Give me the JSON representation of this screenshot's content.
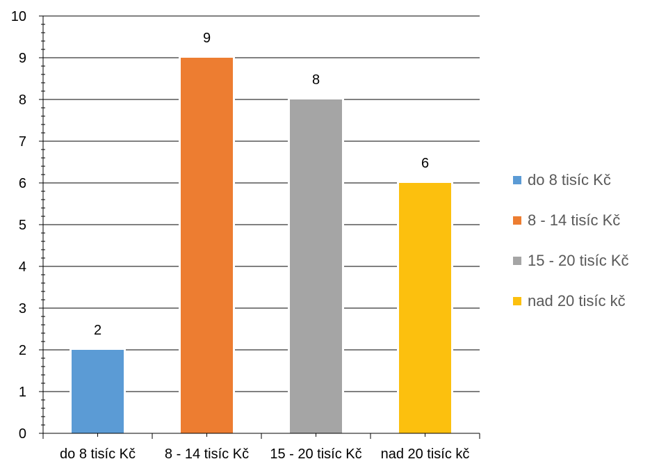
{
  "chart_data": {
    "type": "bar",
    "title": "",
    "xlabel": "",
    "ylabel": "",
    "ylim": [
      0,
      10
    ],
    "y_ticks": [
      "0",
      "1",
      "2",
      "3",
      "4",
      "5",
      "6",
      "7",
      "8",
      "9",
      "10"
    ],
    "grid": true,
    "legend_position": "right",
    "categories": [
      "do 8 tisíc Kč",
      "8 - 14 tisíc Kč",
      "15 - 20 tisíc Kč",
      "nad 20 tisíc kč"
    ],
    "values": [
      2,
      9,
      8,
      6
    ],
    "data_labels": [
      "2",
      "9",
      "8",
      "6"
    ],
    "colors": [
      "#5b9bd5",
      "#ed7d31",
      "#a5a5a5",
      "#fcc00e"
    ],
    "legend": [
      {
        "label": "do 8 tisíc Kč",
        "color": "#5b9bd5"
      },
      {
        "label": "8 - 14 tisíc Kč",
        "color": "#ed7d31"
      },
      {
        "label": "15 - 20 tisíc Kč",
        "color": "#a5a5a5"
      },
      {
        "label": "nad 20 tisíc kč",
        "color": "#fcc00e"
      }
    ]
  }
}
